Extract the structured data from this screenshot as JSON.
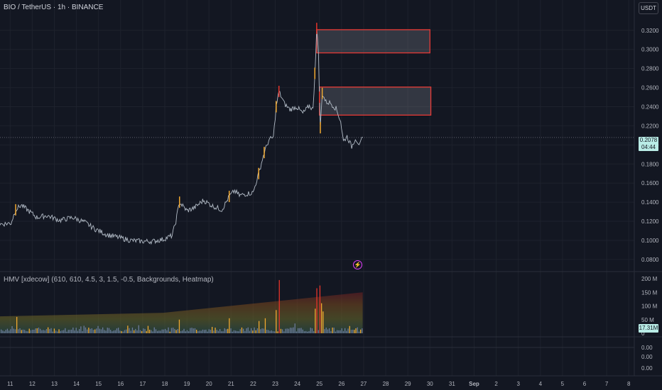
{
  "header": {
    "symbol_title": "BIO / TetherUS · 1h · BINANCE",
    "currency": "USDT"
  },
  "indicator": {
    "label": "HMV [xdecow] (610, 610, 4.5, 3, 1.5, -0.5, Backgrounds, Heatmap)"
  },
  "last_price": {
    "value": "0.2078",
    "countdown": "04:44",
    "volume_label": "17.31M"
  },
  "event_marker": {
    "icon": "lightning-icon",
    "color": "#e040fb"
  },
  "colors": {
    "background": "#131722",
    "grid": "#1e222d",
    "line": "#b2bbc6",
    "highlight_up": "#f0a830",
    "highlight_down": "#e5332a",
    "zone_border": "#e53935",
    "volume_bar": "#6b7a99",
    "price_tag_bg": "#b9ece6"
  },
  "chart_data": [
    {
      "type": "line",
      "title": "",
      "y_axis": {
        "ticks": [
          "0.3200",
          "0.3000",
          "0.2800",
          "0.2600",
          "0.2400",
          "0.2200",
          "0.2000",
          "0.1800",
          "0.1600",
          "0.1400",
          "0.1200",
          "0.1000",
          "0.0800"
        ],
        "range": [
          0.071,
          0.331
        ]
      },
      "x_axis": {
        "ticks": [
          "11",
          "12",
          "13",
          "14",
          "15",
          "16",
          "17",
          "18",
          "19",
          "20",
          "21",
          "22",
          "23",
          "24",
          "25",
          "26",
          "27",
          "28",
          "29",
          "30",
          "31",
          "Sep",
          "2",
          "3",
          "4",
          "5",
          "6",
          "7",
          "8"
        ],
        "range": [
          "2025-08-10T13:00",
          "2025-09-08T06:00"
        ]
      },
      "grid": true,
      "series": [
        {
          "values": [
            [
              "2025-08-10T13:00",
              0.117
            ],
            [
              "2025-08-11T01:00",
              0.118
            ],
            [
              "2025-08-11T06:00",
              0.132
            ],
            [
              "2025-08-11T12:00",
              0.137
            ],
            [
              "2025-08-11T20:00",
              0.131
            ],
            [
              "2025-08-12T05:00",
              0.124
            ],
            [
              "2025-08-12T16:00",
              0.126
            ],
            [
              "2025-08-13T06:00",
              0.121
            ],
            [
              "2025-08-13T20:00",
              0.124
            ],
            [
              "2025-08-14T09:00",
              0.119
            ],
            [
              "2025-08-14T20:00",
              0.112
            ],
            [
              "2025-08-15T09:00",
              0.106
            ],
            [
              "2025-08-15T22:00",
              0.103
            ],
            [
              "2025-08-16T11:00",
              0.1
            ],
            [
              "2025-08-16T23:00",
              0.099
            ],
            [
              "2025-08-17T11:00",
              0.099
            ],
            [
              "2025-08-17T22:00",
              0.101
            ],
            [
              "2025-08-18T08:00",
              0.105
            ],
            [
              "2025-08-18T12:00",
              0.12
            ],
            [
              "2025-08-18T16:00",
              0.14
            ],
            [
              "2025-08-19T00:00",
              0.131
            ],
            [
              "2025-08-19T08:00",
              0.134
            ],
            [
              "2025-08-19T18:00",
              0.142
            ],
            [
              "2025-08-20T04:00",
              0.136
            ],
            [
              "2025-08-20T14:00",
              0.132
            ],
            [
              "2025-08-20T22:00",
              0.146
            ],
            [
              "2025-08-21T04:00",
              0.152
            ],
            [
              "2025-08-21T09:00",
              0.147
            ],
            [
              "2025-08-21T18:00",
              0.149
            ],
            [
              "2025-08-22T00:00",
              0.15
            ],
            [
              "2025-08-22T06:00",
              0.17
            ],
            [
              "2025-08-22T12:00",
              0.192
            ],
            [
              "2025-08-22T17:00",
              0.205
            ],
            [
              "2025-08-22T22:00",
              0.208
            ],
            [
              "2025-08-23T01:00",
              0.24
            ],
            [
              "2025-08-23T04:00",
              0.256
            ],
            [
              "2025-08-23T10:00",
              0.243
            ],
            [
              "2025-08-23T16:00",
              0.237
            ],
            [
              "2025-08-23T23:00",
              0.24
            ],
            [
              "2025-08-24T06:00",
              0.233
            ],
            [
              "2025-08-24T13:00",
              0.241
            ],
            [
              "2025-08-24T17:00",
              0.237
            ],
            [
              "2025-08-24T19:00",
              0.275
            ],
            [
              "2025-08-24T21:00",
              0.322
            ],
            [
              "2025-08-24T23:00",
              0.296
            ],
            [
              "2025-08-25T00:00",
              0.25
            ],
            [
              "2025-08-25T01:00",
              0.218
            ],
            [
              "2025-08-25T03:00",
              0.254
            ],
            [
              "2025-08-25T07:00",
              0.245
            ],
            [
              "2025-08-25T12:00",
              0.244
            ],
            [
              "2025-08-25T18:00",
              0.238
            ],
            [
              "2025-08-25T23:00",
              0.225
            ],
            [
              "2025-08-26T02:00",
              0.204
            ],
            [
              "2025-08-26T06:00",
              0.209
            ],
            [
              "2025-08-26T11:00",
              0.198
            ],
            [
              "2025-08-26T15:00",
              0.207
            ],
            [
              "2025-08-26T20:00",
              0.2
            ],
            [
              "2025-08-26T23:00",
              0.208
            ]
          ]
        }
      ],
      "supply_zones": [
        {
          "x0": "2025-08-24T21:00",
          "x1": "2025-08-30T00:00",
          "y0": 0.2964,
          "y1": 0.3207
        },
        {
          "x0": "2025-08-25T00:00",
          "x1": "2025-08-30T01:00",
          "y0": 0.2312,
          "y1": 0.2606
        }
      ],
      "last_value": 0.2078
    },
    {
      "type": "bar",
      "title": "HMV [xdecow] (610, 610, 4.5, 3, 1.5, -0.5, Backgrounds, Heatmap)",
      "y_axis": {
        "ticks": [
          "200 M",
          "150 M",
          "100 M",
          "50 M",
          "0"
        ],
        "range": [
          0,
          200
        ]
      },
      "y_unit": "M",
      "spikes": [
        [
          "2025-08-11T06:00",
          60
        ],
        [
          "2025-08-18T16:00",
          50
        ],
        [
          "2025-08-20T22:00",
          55
        ],
        [
          "2025-08-22T06:00",
          45
        ],
        [
          "2025-08-22T12:00",
          55
        ],
        [
          "2025-08-23T01:00",
          85
        ],
        [
          "2025-08-23T04:00",
          195
        ],
        [
          "2025-08-24T19:00",
          90
        ],
        [
          "2025-08-24T21:00",
          165
        ],
        [
          "2025-08-25T00:00",
          175
        ],
        [
          "2025-08-25T01:00",
          110
        ],
        [
          "2025-08-25T03:00",
          80
        ]
      ],
      "last_value": 17.31
    },
    {
      "type": "line",
      "title": "",
      "y_axis": {
        "ticks": [
          "0.00",
          "0.00",
          "0.00"
        ]
      }
    }
  ]
}
